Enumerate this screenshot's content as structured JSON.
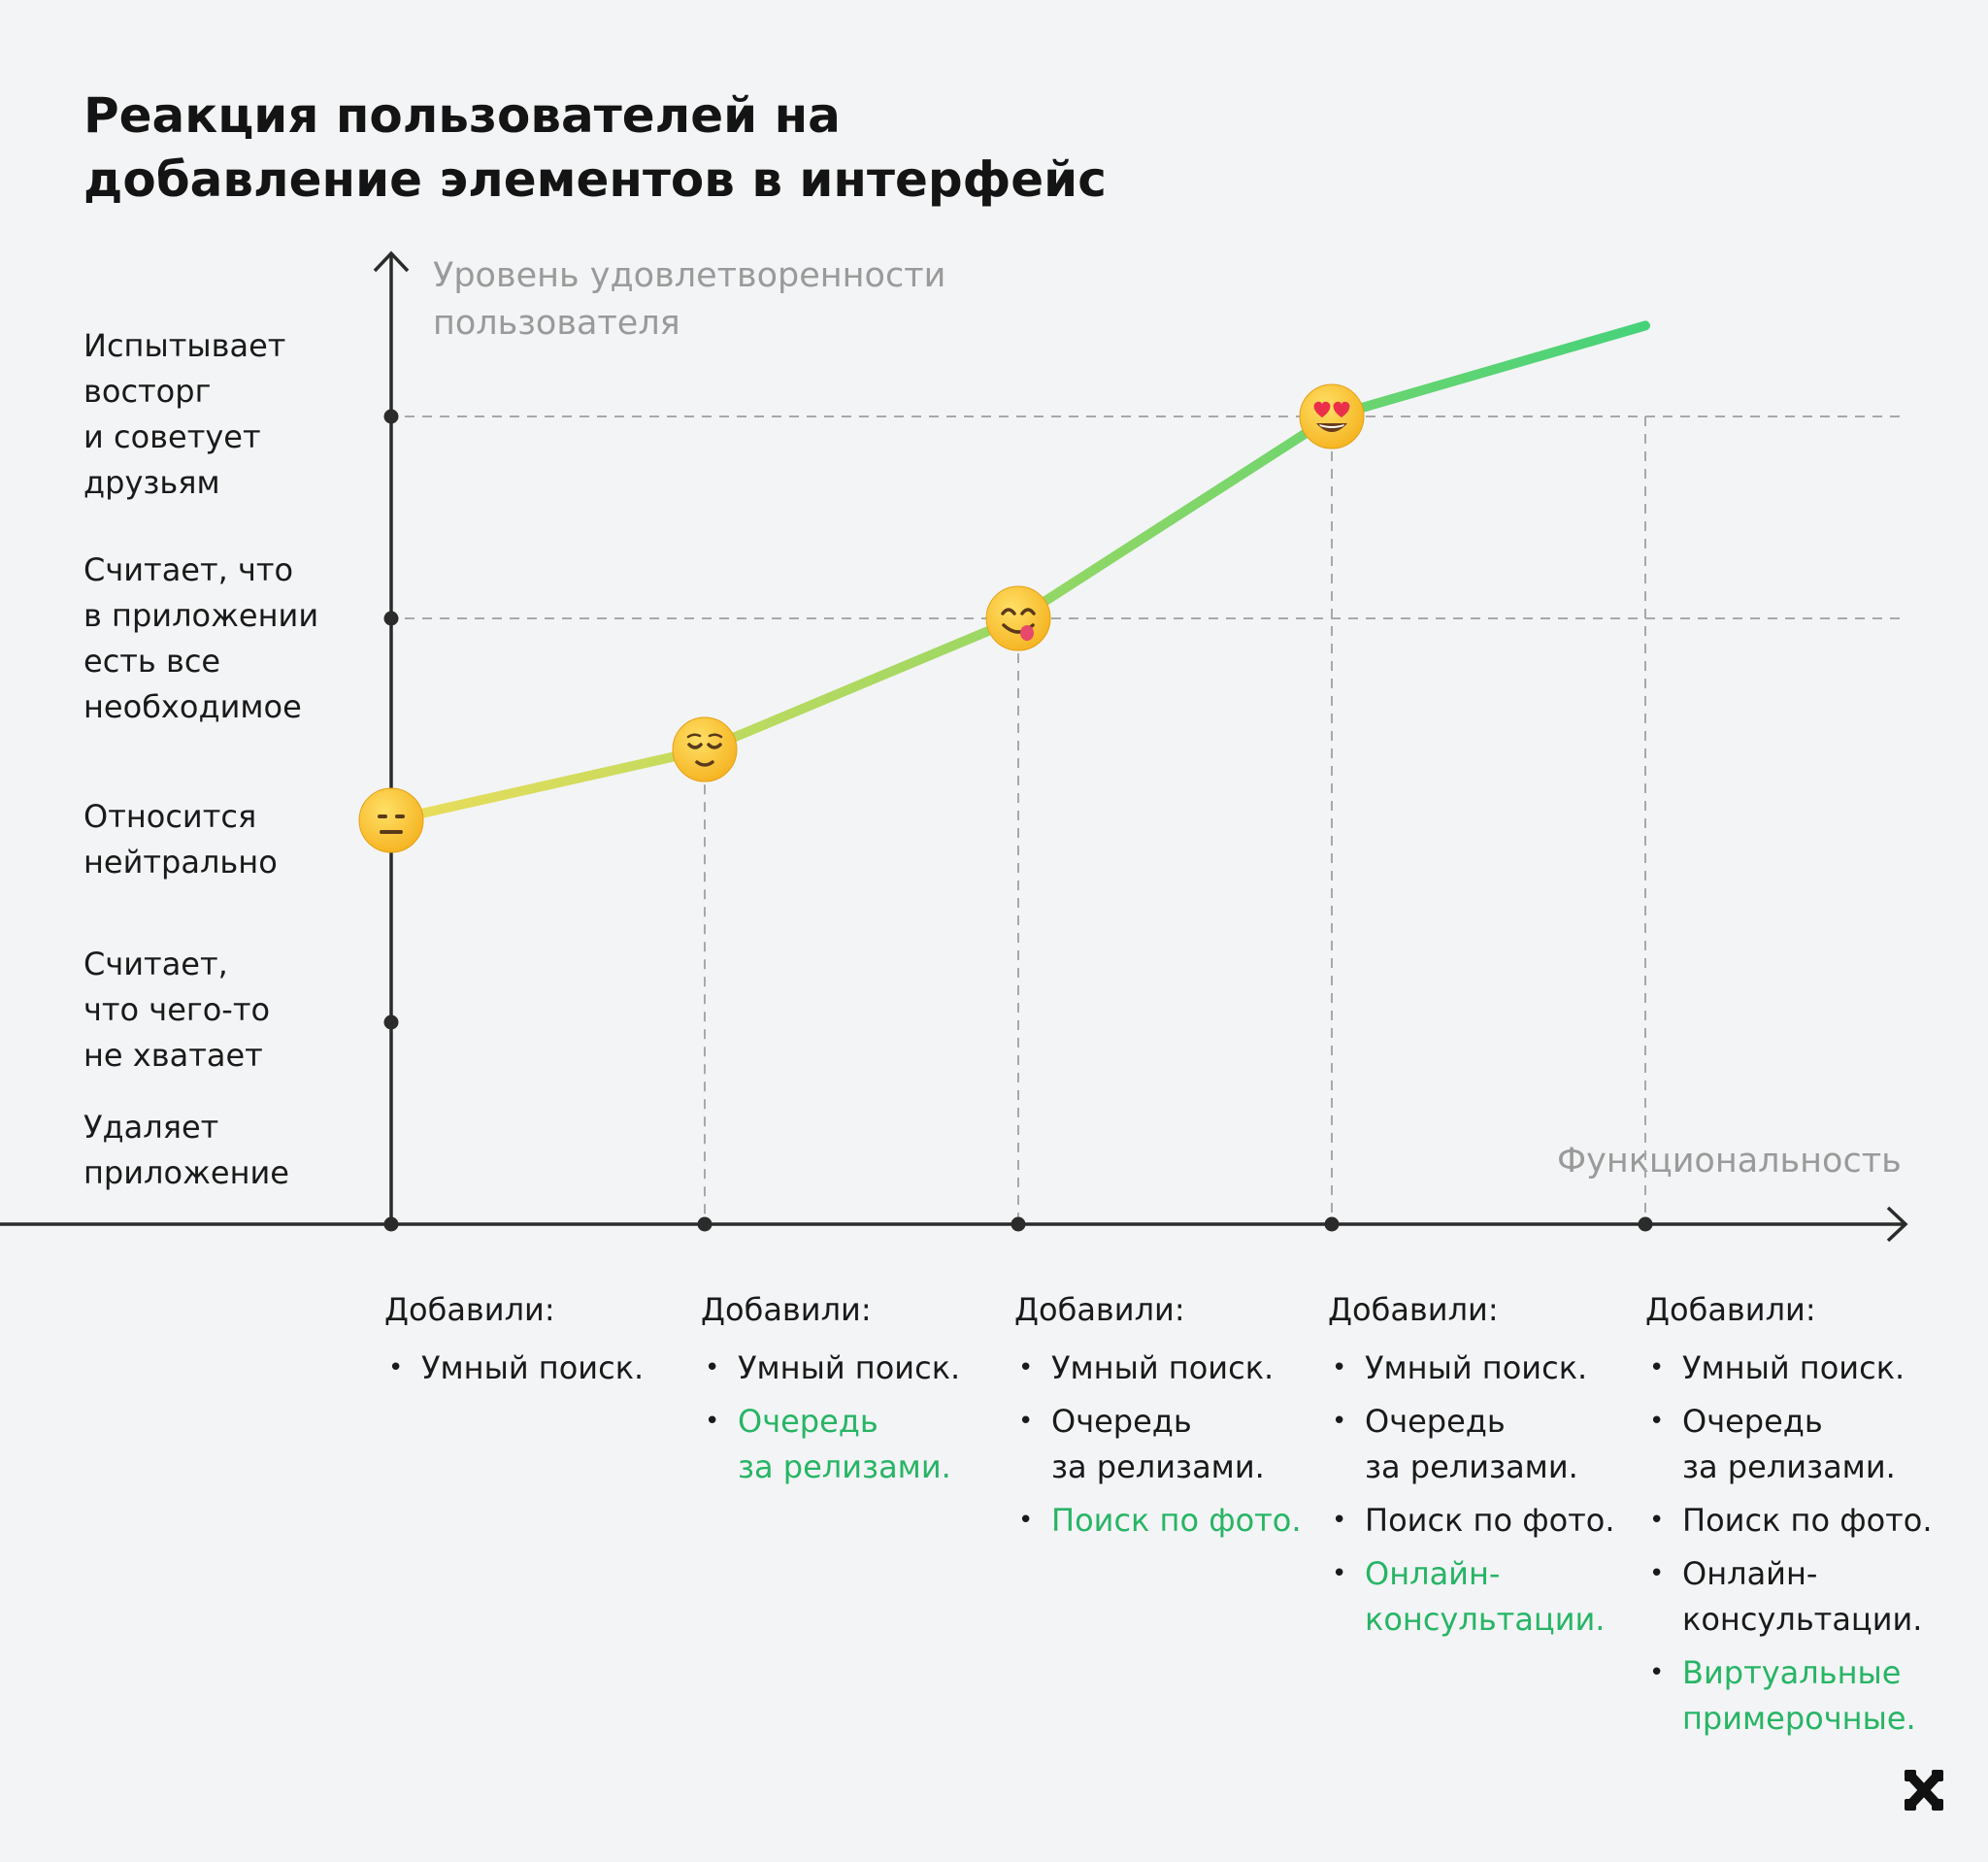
{
  "colors": {
    "background": "#f3f4f5",
    "line_start": "#ecdd5a",
    "line_end": "#47d27a",
    "highlight": "#27b565",
    "axis": "#2b2b2b",
    "grid": "#a8a8a8"
  },
  "title_lines": [
    "Реакция пользователей на",
    "добавление элементов в интерфейс"
  ],
  "y_axis_title_lines": [
    "Уровень удовлетворенности",
    "пользователя"
  ],
  "x_axis_title": "Функциональность",
  "added_label": "Добавили:",
  "chart_data": {
    "type": "line",
    "title": "Реакция пользователей на добавление элементов в интерфейс",
    "xlabel": "Функциональность",
    "ylabel": "Уровень удовлетворенности пользователя",
    "y_levels": [
      {
        "value": 0,
        "label_lines": [
          "Удаляет",
          "приложение"
        ]
      },
      {
        "value": 1,
        "label_lines": [
          "Считает,",
          "что чего-то",
          "не хватает"
        ]
      },
      {
        "value": 2,
        "label_lines": [
          "Относится",
          "нейтрально"
        ]
      },
      {
        "value": 3,
        "label_lines": [
          "Считает, что",
          "в приложении",
          "есть все",
          "необходимое"
        ]
      },
      {
        "value": 4,
        "label_lines": [
          "Испытывает",
          "восторг",
          "и советует",
          "друзьям"
        ]
      }
    ],
    "ylim": [
      0,
      4.6
    ],
    "xlim": [
      0,
      5
    ],
    "points": [
      {
        "x": 1,
        "y": 2.0,
        "emoji": "neutral-face"
      },
      {
        "x": 2,
        "y": 2.35,
        "emoji": "relieved-face"
      },
      {
        "x": 3,
        "y": 3.0,
        "emoji": "yum-face"
      },
      {
        "x": 4,
        "y": 4.0,
        "emoji": "heart-eyes-face"
      },
      {
        "x": 5,
        "y": 4.45
      }
    ],
    "dashed_guides": {
      "horizontal_levels": [
        3,
        4
      ],
      "vertical_x": [
        2,
        3,
        4,
        5
      ]
    },
    "x_ticks": [
      1,
      2,
      3,
      4,
      5
    ],
    "y_ticks": [
      1,
      3,
      4
    ],
    "added_features": [
      {
        "items": [
          {
            "lines": [
              "Умный поиск."
            ],
            "new": false
          }
        ]
      },
      {
        "items": [
          {
            "lines": [
              "Умный поиск."
            ],
            "new": false
          },
          {
            "lines": [
              "Очередь",
              "за релизами."
            ],
            "new": true
          }
        ]
      },
      {
        "items": [
          {
            "lines": [
              "Умный поиск."
            ],
            "new": false
          },
          {
            "lines": [
              "Очередь",
              "за релизами."
            ],
            "new": false
          },
          {
            "lines": [
              "Поиск по фото."
            ],
            "new": true
          }
        ]
      },
      {
        "items": [
          {
            "lines": [
              "Умный поиск."
            ],
            "new": false
          },
          {
            "lines": [
              "Очередь",
              "за релизами."
            ],
            "new": false
          },
          {
            "lines": [
              "Поиск по фото."
            ],
            "new": false
          },
          {
            "lines": [
              "Онлайн-",
              "консультации."
            ],
            "new": true
          }
        ]
      },
      {
        "items": [
          {
            "lines": [
              "Умный поиск."
            ],
            "new": false
          },
          {
            "lines": [
              "Очередь",
              "за релизами."
            ],
            "new": false
          },
          {
            "lines": [
              "Поиск по фото."
            ],
            "new": false
          },
          {
            "lines": [
              "Онлайн-",
              "консультации."
            ],
            "new": false
          },
          {
            "lines": [
              "Виртуальные",
              "примерочные."
            ],
            "new": true
          }
        ]
      }
    ]
  }
}
